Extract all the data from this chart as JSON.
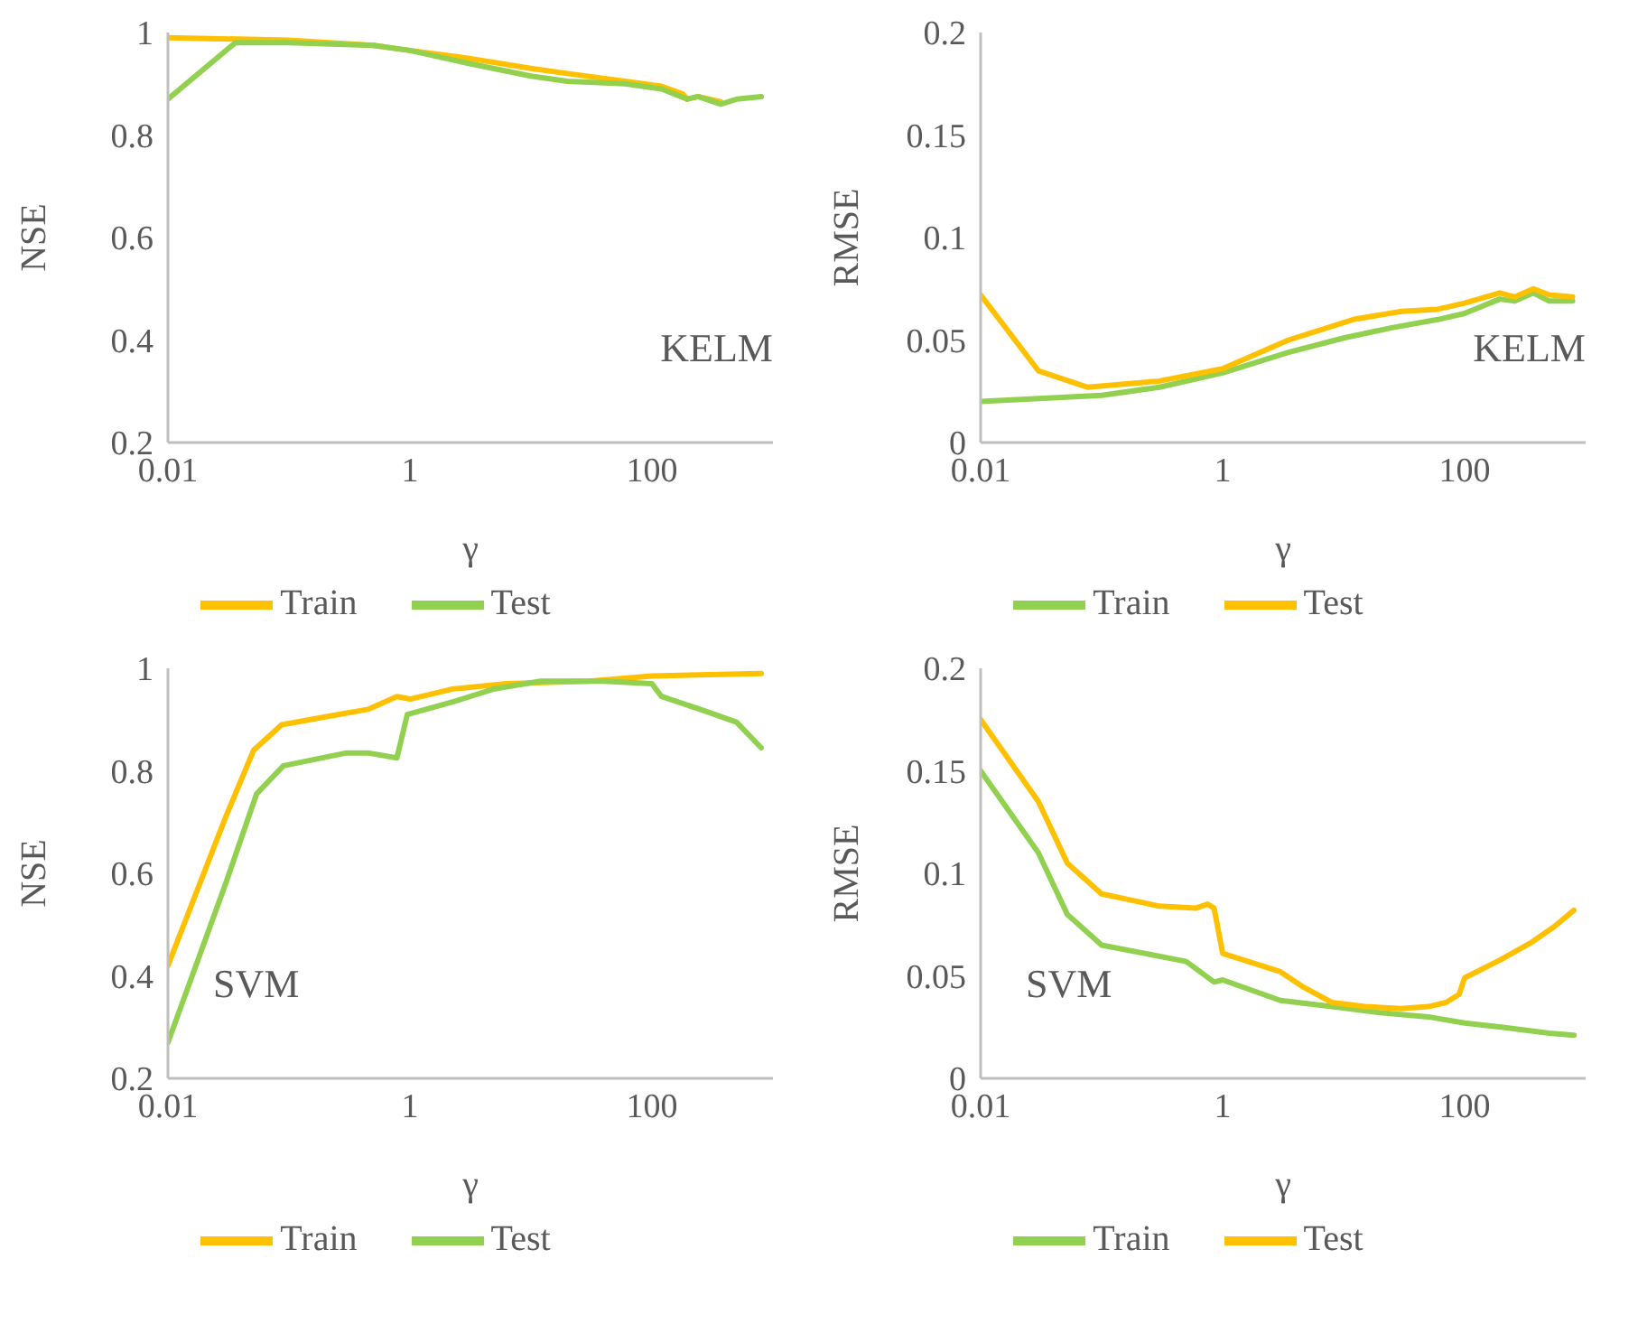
{
  "chart_data": [
    {
      "type": "line",
      "ylabel": "NSE",
      "xlabel": "γ",
      "annotations": [
        "KELM"
      ],
      "log": "x",
      "xlim": [
        0.01,
        1000
      ],
      "xticks": [
        0.01,
        1,
        100
      ],
      "ylim": [
        0.2,
        1
      ],
      "yticks": [
        0.2,
        0.4,
        0.6,
        0.8,
        1
      ],
      "legend": "bottom",
      "grid": false,
      "series": [
        {
          "name": "Train",
          "color": "#ffc000",
          "x": [
            0.01,
            0.1,
            0.5,
            1,
            3,
            10,
            20,
            60,
            120,
            180,
            195,
            240,
            370
          ],
          "values": [
            0.99,
            0.985,
            0.975,
            0.965,
            0.95,
            0.93,
            0.92,
            0.905,
            0.895,
            0.88,
            0.87,
            0.875,
            0.865
          ]
        },
        {
          "name": "Test",
          "color": "#92d050",
          "x": [
            0.01,
            0.036,
            0.1,
            0.5,
            1,
            3,
            10,
            20,
            60,
            120,
            195,
            240,
            370,
            500,
            800
          ],
          "values": [
            0.87,
            0.98,
            0.98,
            0.975,
            0.965,
            0.94,
            0.915,
            0.905,
            0.9,
            0.89,
            0.87,
            0.875,
            0.86,
            0.87,
            0.875
          ]
        }
      ]
    },
    {
      "type": "line",
      "ylabel": "RMSE",
      "xlabel": "γ",
      "annotations": [
        "KELM"
      ],
      "log": "x",
      "xlim": [
        0.01,
        1000
      ],
      "xticks": [
        0.01,
        1,
        100
      ],
      "ylim": [
        0,
        0.2
      ],
      "yticks": [
        0,
        0.05,
        0.1,
        0.15,
        0.2
      ],
      "legend": "bottom",
      "grid": false,
      "series": [
        {
          "name": "Train",
          "color": "#92d050",
          "x": [
            0.01,
            0.1,
            0.3,
            1,
            3.5,
            10,
            25,
            60,
            100,
            195,
            260,
            370,
            500,
            780
          ],
          "values": [
            0.02,
            0.023,
            0.027,
            0.034,
            0.044,
            0.051,
            0.056,
            0.06,
            0.063,
            0.07,
            0.069,
            0.073,
            0.069,
            0.069
          ]
        },
        {
          "name": "Test",
          "color": "#ffc000",
          "x": [
            0.01,
            0.03,
            0.076,
            0.3,
            1,
            3.5,
            12,
            30,
            60,
            100,
            195,
            260,
            370,
            500,
            780
          ],
          "values": [
            0.072,
            0.035,
            0.027,
            0.03,
            0.036,
            0.05,
            0.06,
            0.064,
            0.065,
            0.068,
            0.073,
            0.071,
            0.075,
            0.072,
            0.071
          ]
        }
      ]
    },
    {
      "type": "line",
      "ylabel": "NSE",
      "xlabel": "γ",
      "annotations": [
        "SVM"
      ],
      "log": "x",
      "xlim": [
        0.01,
        1000
      ],
      "xticks": [
        0.01,
        1,
        100
      ],
      "ylim": [
        0.2,
        1
      ],
      "yticks": [
        0.2,
        0.4,
        0.6,
        0.8,
        1
      ],
      "legend": "bottom",
      "grid": false,
      "series": [
        {
          "name": "Train",
          "color": "#ffc000",
          "x": [
            0.01,
            0.03,
            0.051,
            0.087,
            0.26,
            0.45,
            0.78,
            1,
            2.3,
            6.3,
            30,
            100,
            800
          ],
          "values": [
            0.42,
            0.71,
            0.84,
            0.89,
            0.91,
            0.92,
            0.945,
            0.94,
            0.96,
            0.97,
            0.975,
            0.985,
            0.99
          ]
        },
        {
          "name": "Test",
          "color": "#92d050",
          "x": [
            0.01,
            0.03,
            0.054,
            0.09,
            0.3,
            0.45,
            0.78,
            0.95,
            2.3,
            5,
            12,
            40,
            100,
            120,
            250,
            500,
            800
          ],
          "values": [
            0.27,
            0.58,
            0.755,
            0.81,
            0.835,
            0.835,
            0.825,
            0.91,
            0.935,
            0.96,
            0.975,
            0.975,
            0.97,
            0.945,
            0.92,
            0.895,
            0.845
          ]
        }
      ]
    },
    {
      "type": "line",
      "ylabel": "RMSE",
      "xlabel": "γ",
      "annotations": [
        "SVM"
      ],
      "log": "x",
      "xlim": [
        0.01,
        1000
      ],
      "xticks": [
        0.01,
        1,
        100
      ],
      "ylim": [
        0,
        0.2
      ],
      "yticks": [
        0,
        0.05,
        0.1,
        0.15,
        0.2
      ],
      "legend": "bottom",
      "grid": false,
      "series": [
        {
          "name": "Train",
          "color": "#92d050",
          "x": [
            0.01,
            0.03,
            0.052,
            0.1,
            0.5,
            0.85,
            1,
            3,
            8,
            20,
            50,
            100,
            200,
            500,
            800
          ],
          "values": [
            0.15,
            0.11,
            0.08,
            0.065,
            0.057,
            0.047,
            0.048,
            0.038,
            0.035,
            0.032,
            0.03,
            0.027,
            0.025,
            0.022,
            0.021
          ]
        },
        {
          "name": "Test",
          "color": "#ffc000",
          "x": [
            0.01,
            0.03,
            0.052,
            0.1,
            0.3,
            0.6,
            0.75,
            0.85,
            1,
            3,
            4.5,
            8,
            15,
            30,
            50,
            70,
            90,
            100,
            200,
            350,
            550,
            800
          ],
          "values": [
            0.175,
            0.135,
            0.105,
            0.09,
            0.084,
            0.083,
            0.085,
            0.083,
            0.061,
            0.052,
            0.045,
            0.037,
            0.035,
            0.034,
            0.035,
            0.037,
            0.041,
            0.049,
            0.058,
            0.066,
            0.074,
            0.082
          ]
        }
      ]
    }
  ]
}
